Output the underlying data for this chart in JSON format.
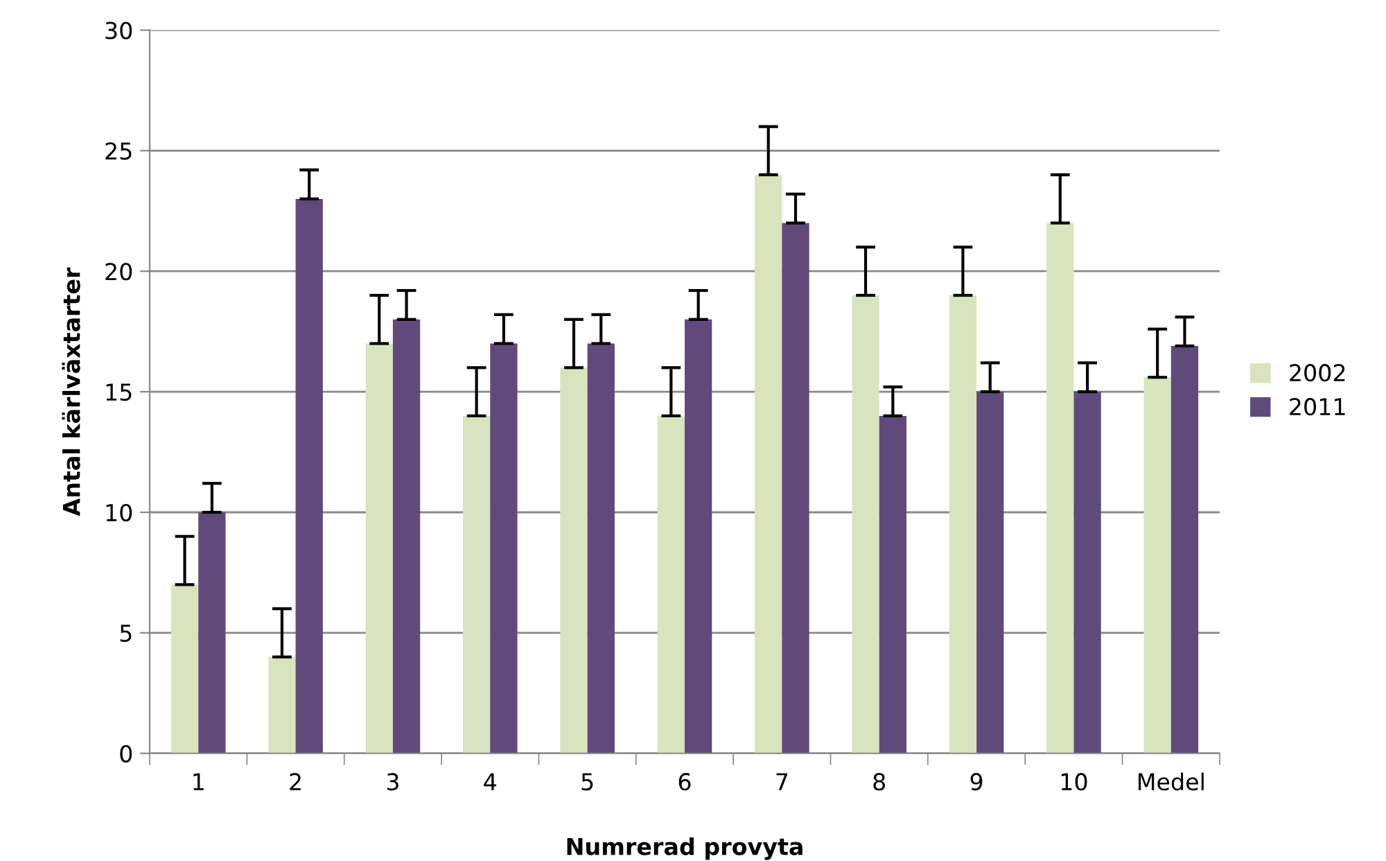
{
  "chart_data": {
    "type": "bar",
    "xlabel": "Numrerad provyta",
    "ylabel": "Antal kärlväxtarter",
    "categories": [
      "1",
      "2",
      "3",
      "4",
      "5",
      "6",
      "7",
      "8",
      "9",
      "10",
      "Medel"
    ],
    "series": [
      {
        "name": "2002",
        "color": "#d7e4bd",
        "values": [
          7,
          4,
          17,
          14,
          16,
          14,
          24,
          19,
          19,
          22,
          15.6
        ],
        "errors": [
          [
            7,
            9
          ],
          [
            4,
            6
          ],
          [
            17,
            19
          ],
          [
            14,
            16
          ],
          [
            16,
            18
          ],
          [
            14,
            16
          ],
          [
            24,
            26
          ],
          [
            19,
            21
          ],
          [
            19,
            21
          ],
          [
            22,
            24
          ],
          [
            15.6,
            17.6
          ]
        ]
      },
      {
        "name": "2011",
        "color": "#604a7b",
        "values": [
          10,
          23,
          18,
          17,
          17,
          18,
          22,
          14,
          15,
          15,
          16.9
        ],
        "errors": [
          [
            10,
            11.2
          ],
          [
            23,
            24.2
          ],
          [
            18,
            19.2
          ],
          [
            17,
            18.2
          ],
          [
            17,
            18.2
          ],
          [
            18,
            19.2
          ],
          [
            22,
            23.2
          ],
          [
            14,
            15.2
          ],
          [
            15,
            16.2
          ],
          [
            15,
            16.2
          ],
          [
            16.9,
            18.1
          ]
        ]
      }
    ],
    "ylim": [
      0,
      30
    ],
    "yticks": [
      0,
      5,
      10,
      15,
      20,
      25,
      30
    ],
    "grid": "y",
    "legend": "right"
  }
}
